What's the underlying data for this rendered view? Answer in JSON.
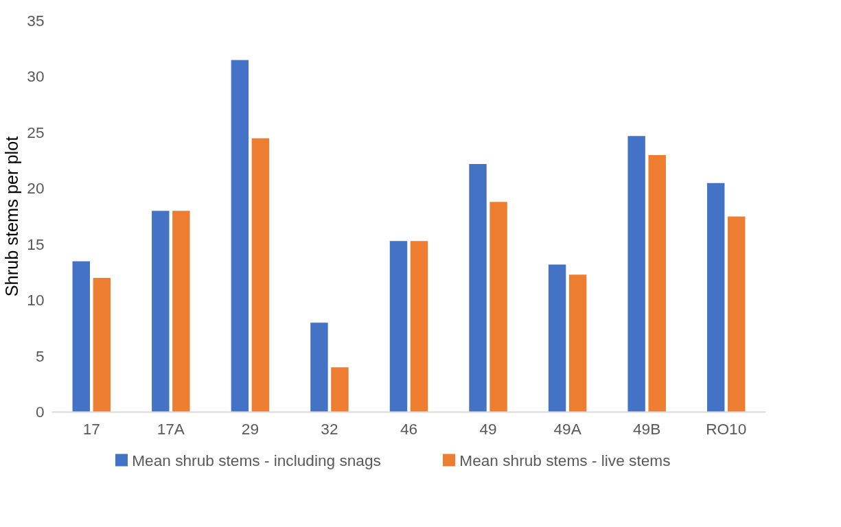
{
  "chart_data": {
    "type": "bar",
    "ylabel": "Shrub stems per plot",
    "categories": [
      "17",
      "17A",
      "29",
      "32",
      "46",
      "49",
      "49A",
      "49B",
      "RO10"
    ],
    "series": [
      {
        "name": "Mean shrub stems - including snags",
        "color": "#4472c4",
        "values": [
          13.5,
          18,
          31.5,
          8,
          15.3,
          22.2,
          13.2,
          24.7,
          20.5
        ]
      },
      {
        "name": "Mean shrub stems - live stems",
        "color": "#ed7d31",
        "values": [
          12,
          18,
          24.5,
          4,
          15.3,
          18.8,
          12.3,
          23,
          17.5
        ]
      }
    ],
    "ylim": [
      0,
      35
    ],
    "yticks": [
      0,
      5,
      10,
      15,
      20,
      25,
      30,
      35
    ],
    "grid": false,
    "legend": "bottom"
  }
}
